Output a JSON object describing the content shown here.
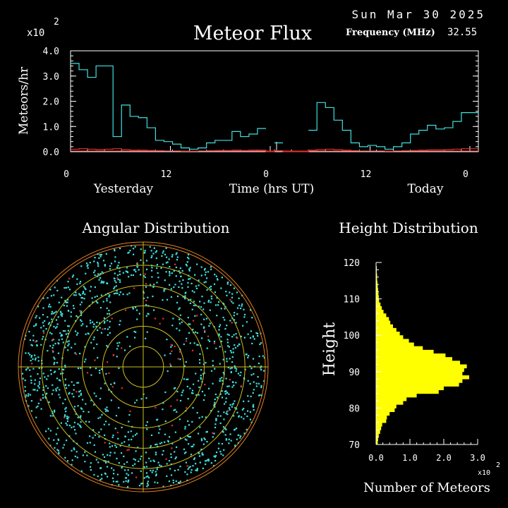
{
  "header": {
    "date": "Sun Mar 30 2025",
    "title": "Meteor Flux",
    "frequency_label": "Frequency (MHz)",
    "frequency_value": "32.55",
    "multiplier": "x10",
    "exponent": "2"
  },
  "colors": {
    "background": "#000000",
    "foreground": "#ffffff",
    "series_total": "#40e0e0",
    "series_low": "#e03030",
    "rings": "#e08020",
    "grid": "#c8c020",
    "hist_fill": "#ffff00"
  },
  "chart_data": [
    {
      "type": "line",
      "title": "Meteor Flux",
      "ylabel": "Meteors/hr",
      "xlabel": "Time (hrs UT)",
      "y_multiplier": "x10^2",
      "ylim": [
        0,
        4
      ],
      "y_ticks": [
        "0.0",
        "1.0",
        "2.0",
        "3.0",
        "4.0"
      ],
      "x_ticks": [
        "0",
        "12",
        "0",
        "12",
        "0"
      ],
      "day_labels": [
        "Yesterday",
        "Today"
      ],
      "step": true,
      "x_hours": [
        0,
        1,
        2,
        3,
        4,
        5,
        6,
        7,
        8,
        9,
        10,
        11,
        12,
        13,
        14,
        15,
        16,
        17,
        18,
        19,
        20,
        21,
        22,
        23,
        24,
        25,
        26,
        27,
        28,
        29,
        30,
        31,
        32,
        33,
        34,
        35,
        36,
        37,
        38,
        39,
        40,
        41,
        42,
        43,
        44,
        45,
        46,
        47
      ],
      "series": [
        {
          "values": [
            3.5,
            3.25,
            2.95,
            3.4,
            3.4,
            0.6,
            1.85,
            1.4,
            1.35,
            0.95,
            0.45,
            0.4,
            0.3,
            0.15,
            0.1,
            0.15,
            0.35,
            0.45,
            0.45,
            0.8,
            0.6,
            0.7,
            0.92,
            0.0,
            0.35,
            0.0,
            0.0,
            0.0,
            0.85,
            1.95,
            1.75,
            1.25,
            0.85,
            0.35,
            0.2,
            0.25,
            0.2,
            0.1,
            0.2,
            0.35,
            0.7,
            0.85,
            1.05,
            0.9,
            0.95,
            1.2,
            1.55,
            1.55
          ]
        },
        {
          "values": [
            0.1,
            0.12,
            0.1,
            0.08,
            0.1,
            0.12,
            0.08,
            0.06,
            0.06,
            0.05,
            0.04,
            0.03,
            0.03,
            0.02,
            0.02,
            0.03,
            0.04,
            0.05,
            0.05,
            0.06,
            0.05,
            0.06,
            0.06,
            0.0,
            0.04,
            0.0,
            0.0,
            0.0,
            0.06,
            0.08,
            0.1,
            0.08,
            0.06,
            0.04,
            0.03,
            0.03,
            0.03,
            0.02,
            0.03,
            0.04,
            0.05,
            0.06,
            0.07,
            0.07,
            0.08,
            0.1,
            0.12,
            0.12
          ]
        }
      ]
    },
    {
      "type": "scatter",
      "title": "Angular Distribution",
      "ring_count": 6
    },
    {
      "type": "bar",
      "orientation": "horizontal",
      "title": "Height Distribution",
      "ylabel": "Height",
      "xlabel": "Number of Meteors",
      "x_multiplier": "x10^2",
      "xlim": [
        0,
        3
      ],
      "ylim": [
        70,
        120
      ],
      "x_ticks": [
        "0.0",
        "1.0",
        "2.0",
        "3.0"
      ],
      "y_ticks": [
        "70",
        "80",
        "90",
        "100",
        "110",
        "120"
      ],
      "heights": [
        120,
        119,
        118,
        117,
        116,
        115,
        114,
        113,
        112,
        111,
        110,
        109,
        108,
        107,
        106,
        105,
        104,
        103,
        102,
        101,
        100,
        99,
        98,
        97,
        96,
        95,
        94,
        93,
        92,
        91,
        90,
        89,
        88,
        87,
        86,
        85,
        84,
        83,
        82,
        81,
        80,
        79,
        78,
        77,
        76,
        75,
        74,
        73,
        72,
        71
      ],
      "values": [
        0.01,
        0.02,
        0.02,
        0.03,
        0.03,
        0.04,
        0.05,
        0.06,
        0.07,
        0.08,
        0.09,
        0.13,
        0.17,
        0.22,
        0.3,
        0.38,
        0.42,
        0.5,
        0.6,
        0.7,
        0.8,
        0.97,
        1.12,
        1.38,
        1.7,
        2.05,
        2.25,
        2.48,
        2.68,
        2.6,
        2.55,
        2.75,
        2.55,
        2.45,
        2.0,
        1.85,
        1.2,
        0.9,
        0.8,
        0.6,
        0.55,
        0.4,
        0.32,
        0.3,
        0.18,
        0.15,
        0.12,
        0.08,
        0.06,
        0.05
      ]
    }
  ]
}
